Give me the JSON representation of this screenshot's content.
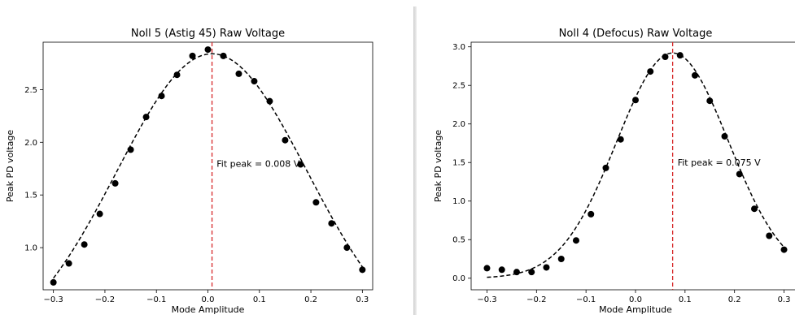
{
  "chart_data": [
    {
      "type": "scatter",
      "title": "Noll 5 (Astig 45) Raw Voltage",
      "xlabel": "Mode Amplitude",
      "ylabel": "Peak PD voltage",
      "xlim": [
        -0.32,
        0.32
      ],
      "ylim": [
        0.6,
        2.95
      ],
      "xticks": [
        -0.3,
        -0.2,
        -0.1,
        0.0,
        0.1,
        0.2,
        0.3
      ],
      "xtick_labels": [
        "−0.3",
        "−0.2",
        "−0.1",
        "0.0",
        "0.1",
        "0.2",
        "0.3"
      ],
      "yticks": [
        1.0,
        1.5,
        2.0,
        2.5
      ],
      "ytick_labels": [
        "1.0",
        "1.5",
        "2.0",
        "2.5"
      ],
      "grid": false,
      "points": {
        "x": [
          -0.3,
          -0.27,
          -0.24,
          -0.21,
          -0.18,
          -0.15,
          -0.12,
          -0.09,
          -0.06,
          -0.03,
          0.0,
          0.03,
          0.06,
          0.09,
          0.12,
          0.15,
          0.18,
          0.21,
          0.24,
          0.27,
          0.3
        ],
        "y": [
          0.67,
          0.85,
          1.03,
          1.32,
          1.61,
          1.93,
          2.24,
          2.44,
          2.64,
          2.82,
          2.88,
          2.82,
          2.65,
          2.58,
          2.39,
          2.02,
          1.79,
          1.43,
          1.23,
          1.0,
          0.79
        ]
      },
      "fit": {
        "type": "gaussian",
        "peak_x": 0.008,
        "amplitude": 2.84,
        "sigma": 0.185,
        "offset": 0.0
      },
      "peak_line": {
        "x": 0.008,
        "color": "#d62728"
      },
      "annotation": {
        "text": "Fit peak = 0.008 V",
        "x": 0.017,
        "y": 1.8
      },
      "marker_color": "#000000"
    },
    {
      "type": "scatter",
      "title": "Noll 4 (Defocus) Raw Voltage",
      "xlabel": "Mode Amplitude",
      "ylabel": "Peak PD voltage",
      "xlim": [
        -0.332,
        0.332
      ],
      "ylim": [
        -0.15,
        3.06
      ],
      "xticks": [
        -0.3,
        -0.2,
        -0.1,
        0.0,
        0.1,
        0.2,
        0.3
      ],
      "xtick_labels": [
        "−0.3",
        "−0.2",
        "−0.1",
        "0.0",
        "0.1",
        "0.2",
        "0.3"
      ],
      "yticks": [
        0.0,
        0.5,
        1.0,
        1.5,
        2.0,
        2.5,
        3.0
      ],
      "ytick_labels": [
        "0.0",
        "0.5",
        "1.0",
        "1.5",
        "2.0",
        "2.5",
        "3.0"
      ],
      "grid": false,
      "points": {
        "x": [
          -0.3,
          -0.27,
          -0.24,
          -0.21,
          -0.18,
          -0.15,
          -0.12,
          -0.09,
          -0.06,
          -0.03,
          0.0,
          0.03,
          0.06,
          0.09,
          0.12,
          0.15,
          0.18,
          0.21,
          0.24,
          0.27,
          0.3
        ],
        "y": [
          0.13,
          0.11,
          0.08,
          0.08,
          0.14,
          0.25,
          0.49,
          0.83,
          1.43,
          1.8,
          2.31,
          2.68,
          2.87,
          2.89,
          2.63,
          2.3,
          1.84,
          1.35,
          0.9,
          0.55,
          0.37
        ]
      },
      "fit": {
        "type": "gaussian",
        "peak_x": 0.075,
        "amplitude": 2.92,
        "sigma": 0.113,
        "offset": 0.0
      },
      "peak_line": {
        "x": 0.075,
        "color": "#d62728"
      },
      "annotation": {
        "text": "Fit peak = 0.075 V",
        "x": 0.085,
        "y": 1.5
      },
      "marker_color": "#000000"
    }
  ]
}
